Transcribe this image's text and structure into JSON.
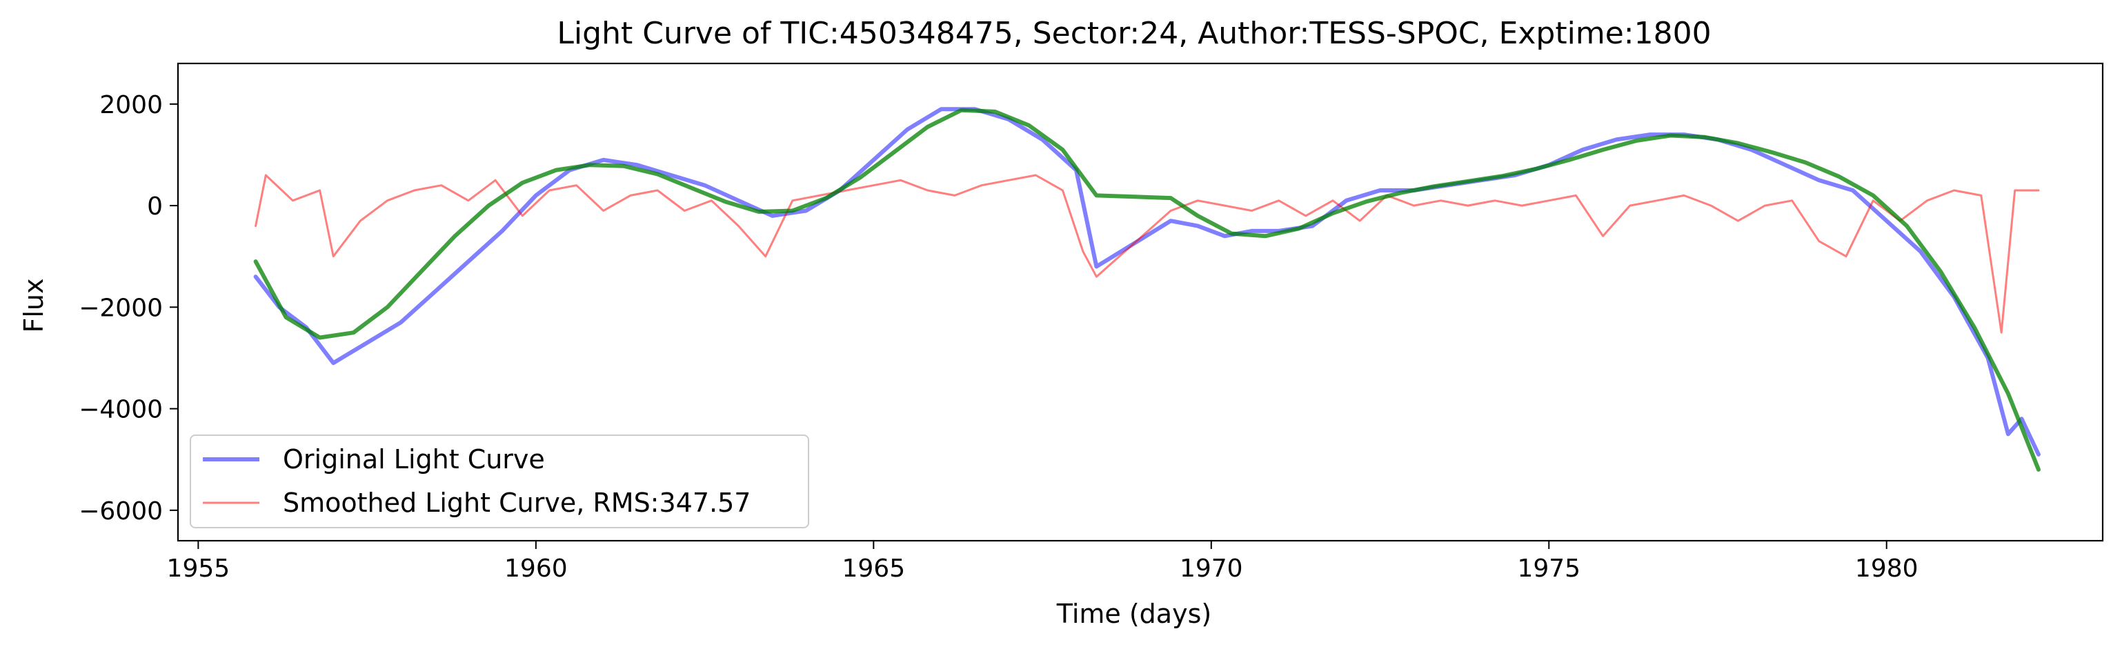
{
  "chart_data": {
    "type": "line",
    "title": "Light Curve of TIC:450348475, Sector:24, Author:TESS-SPOC, Exptime:1800",
    "xlabel": "Time (days)",
    "ylabel": "Flux",
    "xlim": [
      1954.7,
      1983.2
    ],
    "ylim": [
      -6600,
      2800
    ],
    "xticks": [
      1955,
      1960,
      1965,
      1970,
      1975,
      1980
    ],
    "yticks": [
      2000,
      0,
      -2000,
      -4000,
      -6000
    ],
    "grid": false,
    "legend_position": "lower-left",
    "series": [
      {
        "name": "Original Light Curve",
        "color": "#0000ff",
        "opacity": 0.5,
        "x": [
          1955.85,
          1956.2,
          1956.6,
          1957.0,
          1957.5,
          1958.0,
          1958.5,
          1959.0,
          1959.5,
          1960.0,
          1960.5,
          1961.0,
          1961.5,
          1962.0,
          1962.5,
          1963.0,
          1963.5,
          1964.0,
          1964.5,
          1965.0,
          1965.5,
          1966.0,
          1966.5,
          1967.0,
          1967.5,
          1968.0,
          1968.3,
          1969.4,
          1969.8,
          1970.2,
          1970.6,
          1971.0,
          1971.5,
          1972.0,
          1972.5,
          1973.0,
          1973.5,
          1974.0,
          1974.5,
          1975.0,
          1975.5,
          1976.0,
          1976.5,
          1977.0,
          1977.5,
          1978.0,
          1978.5,
          1979.0,
          1979.5,
          1980.0,
          1980.5,
          1981.0,
          1981.5,
          1981.8,
          1982.0,
          1982.25
        ],
        "y": [
          -1400,
          -2000,
          -2400,
          -3100,
          -2700,
          -2300,
          -1700,
          -1100,
          -500,
          200,
          700,
          900,
          800,
          600,
          400,
          100,
          -200,
          -100,
          300,
          900,
          1500,
          1900,
          1900,
          1700,
          1300,
          700,
          -1200,
          -300,
          -400,
          -600,
          -500,
          -500,
          -400,
          100,
          300,
          300,
          400,
          500,
          600,
          800,
          1100,
          1300,
          1400,
          1400,
          1300,
          1100,
          800,
          500,
          300,
          -300,
          -900,
          -1800,
          -3000,
          -4500,
          -4200,
          -4900
        ]
      },
      {
        "name": "Smoothed Light Curve, RMS:347.57",
        "color": "#ff0000",
        "opacity": 0.5,
        "x": [
          1955.85,
          1956.0,
          1956.4,
          1956.8,
          1957.0,
          1957.4,
          1957.8,
          1958.2,
          1958.6,
          1959.0,
          1959.4,
          1959.8,
          1960.2,
          1960.6,
          1961.0,
          1961.4,
          1961.8,
          1962.2,
          1962.6,
          1963.0,
          1963.4,
          1963.8,
          1964.2,
          1964.6,
          1965.0,
          1965.4,
          1965.8,
          1966.2,
          1966.6,
          1967.0,
          1967.4,
          1967.8,
          1968.1,
          1968.3,
          1969.4,
          1969.8,
          1970.2,
          1970.6,
          1971.0,
          1971.4,
          1971.8,
          1972.2,
          1972.6,
          1973.0,
          1973.4,
          1973.8,
          1974.2,
          1974.6,
          1975.0,
          1975.4,
          1975.8,
          1976.2,
          1976.6,
          1977.0,
          1977.4,
          1977.8,
          1978.2,
          1978.6,
          1979.0,
          1979.4,
          1979.8,
          1980.2,
          1980.6,
          1981.0,
          1981.4,
          1981.7,
          1981.9,
          1982.25
        ],
        "y": [
          -400,
          600,
          100,
          300,
          -1000,
          -300,
          100,
          300,
          400,
          100,
          500,
          -200,
          300,
          400,
          -100,
          200,
          300,
          -100,
          100,
          -400,
          -1000,
          100,
          200,
          300,
          400,
          500,
          300,
          200,
          400,
          500,
          600,
          300,
          -900,
          -1400,
          -100,
          100,
          0,
          -100,
          100,
          -200,
          100,
          -300,
          200,
          0,
          100,
          0,
          100,
          0,
          100,
          200,
          -600,
          0,
          100,
          200,
          0,
          -300,
          0,
          100,
          -700,
          -1000,
          100,
          -300,
          100,
          300,
          200,
          -2500,
          300,
          300
        ]
      },
      {
        "name": "",
        "color": "#008000",
        "opacity": 0.75,
        "x": [
          1955.85,
          1956.3,
          1956.8,
          1957.3,
          1957.8,
          1958.3,
          1958.8,
          1959.3,
          1959.8,
          1960.3,
          1960.8,
          1961.3,
          1961.8,
          1962.3,
          1962.8,
          1963.3,
          1963.8,
          1964.3,
          1964.8,
          1965.3,
          1965.8,
          1966.3,
          1966.8,
          1967.3,
          1967.8,
          1968.3,
          1969.4,
          1969.8,
          1970.3,
          1970.8,
          1971.3,
          1971.8,
          1972.3,
          1972.8,
          1973.3,
          1973.8,
          1974.3,
          1974.8,
          1975.3,
          1975.8,
          1976.3,
          1976.8,
          1977.3,
          1977.8,
          1978.3,
          1978.8,
          1979.3,
          1979.8,
          1980.3,
          1980.8,
          1981.3,
          1981.8,
          1982.25
        ],
        "y": [
          -1100,
          -2200,
          -2600,
          -2500,
          -2000,
          -1300,
          -600,
          0,
          450,
          700,
          800,
          780,
          620,
          350,
          80,
          -120,
          -100,
          150,
          550,
          1050,
          1550,
          1880,
          1850,
          1580,
          1100,
          200,
          150,
          -200,
          -550,
          -600,
          -450,
          -150,
          80,
          250,
          380,
          480,
          580,
          720,
          900,
          1100,
          1280,
          1380,
          1350,
          1230,
          1050,
          850,
          570,
          200,
          -400,
          -1300,
          -2400,
          -3700,
          -5200
        ]
      }
    ]
  },
  "legend": {
    "items": [
      {
        "label": "Original Light Curve",
        "color": "#0000ff"
      },
      {
        "label": "Smoothed Light Curve, RMS:347.57",
        "color": "#ff0000"
      }
    ]
  }
}
